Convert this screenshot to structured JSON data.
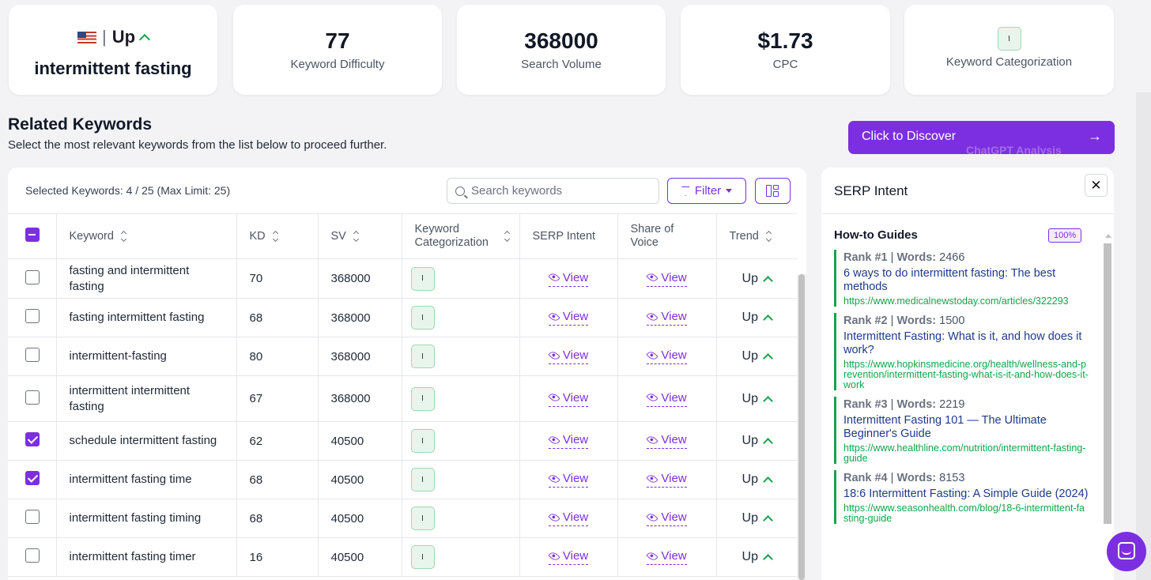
{
  "top_cards": {
    "keyword": {
      "trend": "Up",
      "name": "intermittent fasting",
      "flag_icon": "us-flag-icon"
    },
    "difficulty": {
      "value": "77",
      "label": "Keyword Difficulty"
    },
    "volume": {
      "value": "368000",
      "label": "Search Volume"
    },
    "cpc": {
      "value": "$1.73",
      "label": "CPC"
    },
    "categorization": {
      "badge": "I",
      "label": "Keyword Categorization"
    }
  },
  "related": {
    "title": "Related Keywords",
    "subtitle": "Select the most relevant keywords from the list below to proceed further."
  },
  "discover_button": {
    "label": "Click to Discover",
    "ghost": "ChatGPT Analysis",
    "arrow": "→"
  },
  "toolbar": {
    "selected_info": "Selected Keywords: 4 / 25 (Max Limit: 25)",
    "search_placeholder": "Search keywords",
    "filter_label": "Filter"
  },
  "table": {
    "headers": {
      "keyword": "Keyword",
      "kd": "KD",
      "sv": "SV",
      "categorization": "Keyword Categorization",
      "serp": "SERP Intent",
      "share": "Share of Voice",
      "trend": "Trend"
    },
    "view_label": "View",
    "rows": [
      {
        "keyword": "fasting and intermittent fasting",
        "kd": "70",
        "sv": "368000",
        "cat": "I",
        "trend": "Up",
        "checked": false
      },
      {
        "keyword": "fasting intermittent fasting",
        "kd": "68",
        "sv": "368000",
        "cat": "I",
        "trend": "Up",
        "checked": false
      },
      {
        "keyword": "intermittent-fasting",
        "kd": "80",
        "sv": "368000",
        "cat": "I",
        "trend": "Up",
        "checked": false
      },
      {
        "keyword": "intermittent intermittent fasting",
        "kd": "67",
        "sv": "368000",
        "cat": "I",
        "trend": "Up",
        "checked": false
      },
      {
        "keyword": "schedule intermittent fasting",
        "kd": "62",
        "sv": "40500",
        "cat": "I",
        "trend": "Up",
        "checked": true
      },
      {
        "keyword": "intermittent fasting time",
        "kd": "68",
        "sv": "40500",
        "cat": "I",
        "trend": "Up",
        "checked": true
      },
      {
        "keyword": "intermittent fasting timing",
        "kd": "68",
        "sv": "40500",
        "cat": "I",
        "trend": "Up",
        "checked": false
      },
      {
        "keyword": "intermittent fasting timer",
        "kd": "16",
        "sv": "40500",
        "cat": "I",
        "trend": "Up",
        "checked": false
      }
    ]
  },
  "serp_panel": {
    "title": "SERP Intent",
    "close": "✕",
    "intent": "How-to Guides",
    "percent": "100%",
    "results": [
      {
        "rank": "Rank #1",
        "words_label": "Words:",
        "words": "2466",
        "title": "6 ways to do intermittent fasting: The best methods",
        "url": "https://www.medicalnewstoday.com/articles/322293"
      },
      {
        "rank": "Rank #2",
        "words_label": "Words:",
        "words": "1500",
        "title": "Intermittent Fasting: What is it, and how does it work?",
        "url": "https://www.hopkinsmedicine.org/health/wellness-and-prevention/intermittent-fasting-what-is-it-and-how-does-it-work"
      },
      {
        "rank": "Rank #3",
        "words_label": "Words:",
        "words": "2219",
        "title": "Intermittent Fasting 101 — The Ultimate Beginner's Guide",
        "url": "https://www.healthline.com/nutrition/intermittent-fasting-guide"
      },
      {
        "rank": "Rank #4",
        "words_label": "Words:",
        "words": "8153",
        "title": "18:6 Intermittent Fasting: A Simple Guide (2024)",
        "url": "https://www.seasonhealth.com/blog/18-6-intermittent-fasting-guide"
      }
    ]
  },
  "colors": {
    "accent": "#7c2fe0",
    "success": "#16a34a",
    "link": "#1e3a8a"
  }
}
